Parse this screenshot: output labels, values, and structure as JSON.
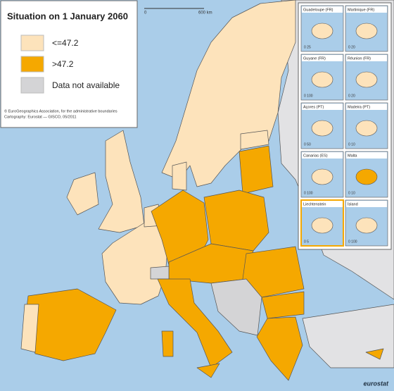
{
  "title": "Situation on 1 January 2060",
  "legend": [
    {
      "label": "<=47.2",
      "color": "#fde3bb"
    },
    {
      "label": ">47.2",
      "color": "#f5a800"
    },
    {
      "label": "Data not available",
      "color": "#d4d4d6"
    }
  ],
  "credits": [
    "© EuroGeographics Association, for the administrative boundaries",
    "Cartography: Eurostat — GISCO, 05/2011"
  ],
  "scale": {
    "start": "0",
    "end": "600 km"
  },
  "insets": [
    {
      "name": "Guadeloupe (FR)",
      "scale": "0  25",
      "color": "#fde3bb"
    },
    {
      "name": "Martinique (FR)",
      "scale": "0  20",
      "color": "#fde3bb"
    },
    {
      "name": "Guyane (FR)",
      "scale": "0  100",
      "color": "#fde3bb"
    },
    {
      "name": "Réunion (FR)",
      "scale": "0  20",
      "color": "#fde3bb"
    },
    {
      "name": "Açores (PT)",
      "scale": "0  50",
      "color": "#fde3bb"
    },
    {
      "name": "Madeira (PT)",
      "scale": "0  10",
      "color": "#fde3bb"
    },
    {
      "name": "Canarias (ES)",
      "scale": "0  100",
      "color": "#fde3bb"
    },
    {
      "name": "Malta",
      "scale": "0  10",
      "color": "#f5a800"
    },
    {
      "name": "Liechtenstein",
      "scale": "0  5",
      "color": "#fde3bb"
    },
    {
      "name": "Ísland",
      "scale": "0  100",
      "color": "#fde3bb"
    }
  ],
  "logo": "eurostat"
}
